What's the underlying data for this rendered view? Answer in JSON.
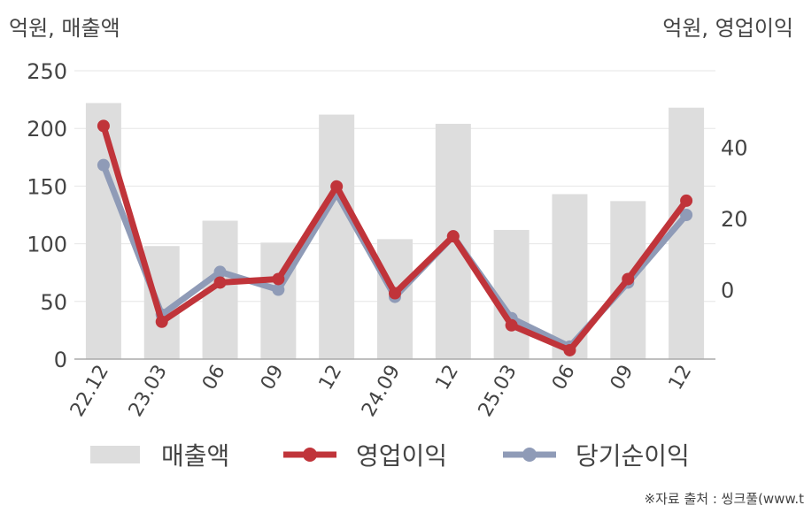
{
  "units": {
    "left": "억원, 매출액",
    "right": "억원, 영업이익"
  },
  "legend": {
    "revenue": "매출액",
    "operating_profit": "영업이익",
    "net_income": "당기순이익"
  },
  "footer": "※자료 출처 : 씽크풀(www.t",
  "colors": {
    "revenue_bar": "#dddddd",
    "operating_profit": "#c0343a",
    "net_income": "#8f9bb7"
  },
  "chart_data": {
    "type": "bar",
    "categories": [
      "22.12",
      "23.03",
      "06",
      "09",
      "12",
      "24.09",
      "12",
      "25.03",
      "06",
      "09",
      "12"
    ],
    "series": [
      {
        "name": "매출액",
        "type": "bar",
        "axis": "left",
        "values": [
          222,
          98,
          120,
          101,
          212,
          104,
          204,
          112,
          143,
          137,
          218
        ]
      },
      {
        "name": "영업이익",
        "type": "line",
        "axis": "right",
        "values": [
          46,
          -9,
          2,
          3,
          29,
          -1,
          15,
          -10,
          -17,
          3,
          25
        ]
      },
      {
        "name": "당기순이익",
        "type": "line",
        "axis": "right",
        "values": [
          35,
          -7,
          5,
          0,
          27,
          -2,
          15,
          -8,
          -16,
          2,
          21
        ]
      }
    ],
    "y_left": {
      "ylim": [
        0,
        250
      ],
      "ticks": [
        0,
        50,
        100,
        150,
        200,
        250
      ]
    },
    "y_right": {
      "ylim": [
        -19.5,
        61.5
      ],
      "ticks": [
        0,
        20,
        40
      ]
    },
    "grid": true,
    "legend_position": "bottom"
  }
}
